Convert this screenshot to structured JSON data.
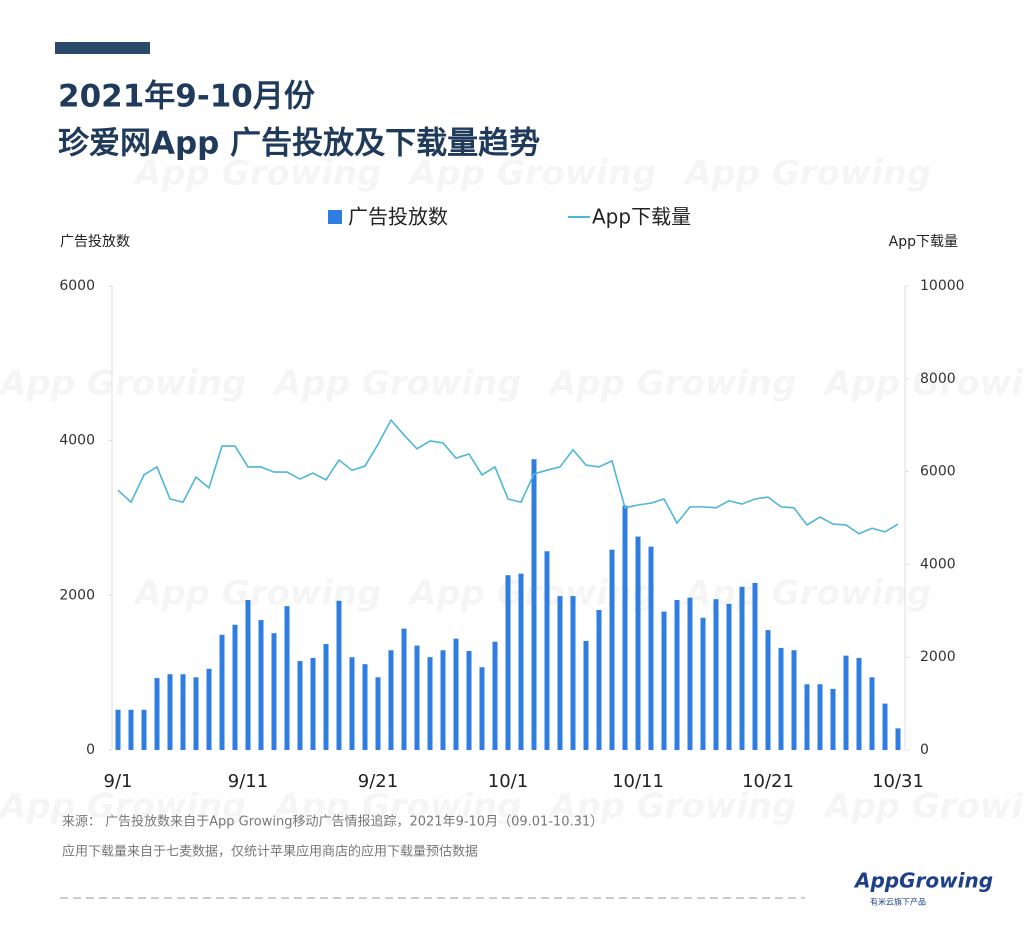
{
  "chart_data": {
    "type": "bar-line",
    "title": [
      "2021年9-10月份",
      "珍爱网App 广告投放及下载量趋势"
    ],
    "y_label": "广告投放数",
    "y2_label": "App下载量",
    "categories": [
      "9/1",
      null,
      null,
      null,
      null,
      null,
      null,
      null,
      null,
      null,
      "9/11",
      null,
      null,
      null,
      null,
      null,
      null,
      null,
      null,
      null,
      "9/21",
      null,
      null,
      null,
      null,
      null,
      null,
      null,
      null,
      null,
      "10/1",
      null,
      null,
      null,
      null,
      null,
      null,
      null,
      null,
      null,
      "10/11",
      null,
      null,
      null,
      null,
      null,
      null,
      null,
      null,
      null,
      "10/21",
      null,
      null,
      null,
      null,
      null,
      null,
      null,
      null,
      null,
      "10/31"
    ],
    "series": [
      {
        "name": "广告投放数",
        "kind": "bar",
        "color": "#2f7de1",
        "values": [
          520,
          520,
          520,
          930,
          980,
          980,
          940,
          1050,
          1490,
          1620,
          1940,
          1680,
          1510,
          1860,
          1150,
          1190,
          1370,
          1930,
          1200,
          1110,
          940,
          1290,
          1570,
          1350,
          1200,
          1290,
          1440,
          1280,
          1070,
          1400,
          2260,
          2280,
          3760,
          2570,
          1990,
          1990,
          1410,
          1810,
          2590,
          3160,
          2760,
          2630,
          1790,
          1940,
          1970,
          1710,
          1950,
          1890,
          2110,
          2160,
          1550,
          1320,
          1290,
          850,
          850,
          790,
          1220,
          1190,
          940,
          600,
          280
        ]
      },
      {
        "name": "App下载量",
        "kind": "line",
        "axis": "y2",
        "color": "#4fb6d6",
        "values": [
          5600,
          5340,
          5930,
          6100,
          5410,
          5340,
          5880,
          5650,
          6550,
          6550,
          6100,
          6100,
          5990,
          5990,
          5840,
          5970,
          5820,
          6250,
          6030,
          6120,
          6590,
          7110,
          6790,
          6490,
          6660,
          6620,
          6290,
          6380,
          5930,
          6100,
          5410,
          5340,
          5950,
          6030,
          6100,
          6470,
          6140,
          6100,
          6230,
          5220,
          5280,
          5320,
          5410,
          4890,
          5240,
          5240,
          5220,
          5370,
          5300,
          5410,
          5450,
          5240,
          5220,
          4850,
          5020,
          4870,
          4850,
          4660,
          4780,
          4700,
          4870
        ]
      }
    ],
    "ylim": [
      0,
      6000
    ],
    "yticks": [
      0,
      2000,
      4000,
      6000
    ],
    "y2lim": [
      0,
      10000
    ],
    "y2ticks": [
      0,
      2000,
      4000,
      6000,
      8000,
      10000
    ],
    "legend": "top"
  },
  "source_lines": [
    "来源：  广告投放数来自于App Growing移动广告情报追踪，2021年9-10月（09.01-10.31）",
    "应用下载量来自于七麦数据，仅统计苹果应用商店的应用下载量预估数据"
  ],
  "watermark": "App Growing",
  "logo": {
    "name": "AppGrowing",
    "tagline": "有米云旗下产品"
  }
}
